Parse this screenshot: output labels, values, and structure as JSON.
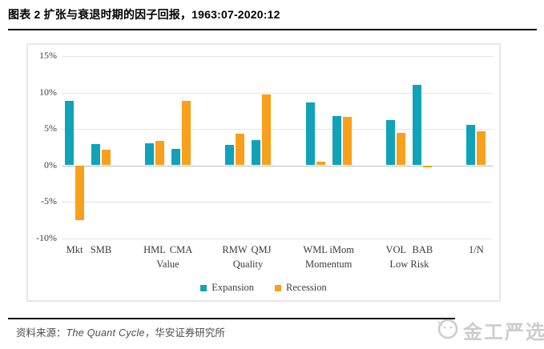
{
  "title": "图表 2 扩张与衰退时期的因子回报，1963:07-2020:12",
  "source": {
    "prefix": "资料来源：",
    "work": "The Quant Cycle",
    "suffix": "，华安证券研究所"
  },
  "watermark": {
    "text": "金工严选",
    "icon": "circle-seal-icon"
  },
  "chart_data": {
    "type": "bar",
    "title": "",
    "xlabel": "",
    "ylabel": "",
    "ylim": [
      -10,
      15
    ],
    "yticks": [
      15,
      10,
      5,
      0,
      -5,
      -10
    ],
    "ytick_suffix": "%",
    "grid": true,
    "legend_position": "bottom-center",
    "series_names": [
      "Expansion",
      "Recession"
    ],
    "colors": {
      "expansion": "#0fa2b8",
      "recession": "#f8a01b",
      "gridline": "#e4e4e4",
      "zero_line": "#bdbdbd"
    },
    "groups": [
      {
        "label": "",
        "factors": [
          {
            "name": "Mkt",
            "expansion": 8.8,
            "recession": -7.5
          },
          {
            "name": "SMB",
            "expansion": 2.9,
            "recession": 2.1
          }
        ]
      },
      {
        "label": "Value",
        "factors": [
          {
            "name": "HML",
            "expansion": 3.0,
            "recession": 3.3
          },
          {
            "name": "CMA",
            "expansion": 2.3,
            "recession": 8.8
          }
        ]
      },
      {
        "label": "Quality",
        "factors": [
          {
            "name": "RMW",
            "expansion": 2.8,
            "recession": 4.3
          },
          {
            "name": "QMJ",
            "expansion": 3.5,
            "recession": 9.7
          }
        ]
      },
      {
        "label": "Momentum",
        "factors": [
          {
            "name": "WML",
            "expansion": 8.6,
            "recession": 0.5
          },
          {
            "name": "iMom",
            "expansion": 6.8,
            "recession": 6.6
          }
        ]
      },
      {
        "label": "Low Risk",
        "factors": [
          {
            "name": "VOL",
            "expansion": 6.2,
            "recession": 4.5
          },
          {
            "name": "BAB",
            "expansion": 11.0,
            "recession": -0.3
          }
        ]
      },
      {
        "label": "",
        "factors": [
          {
            "name": "1/N",
            "expansion": 5.5,
            "recession": 4.7
          }
        ]
      }
    ]
  }
}
